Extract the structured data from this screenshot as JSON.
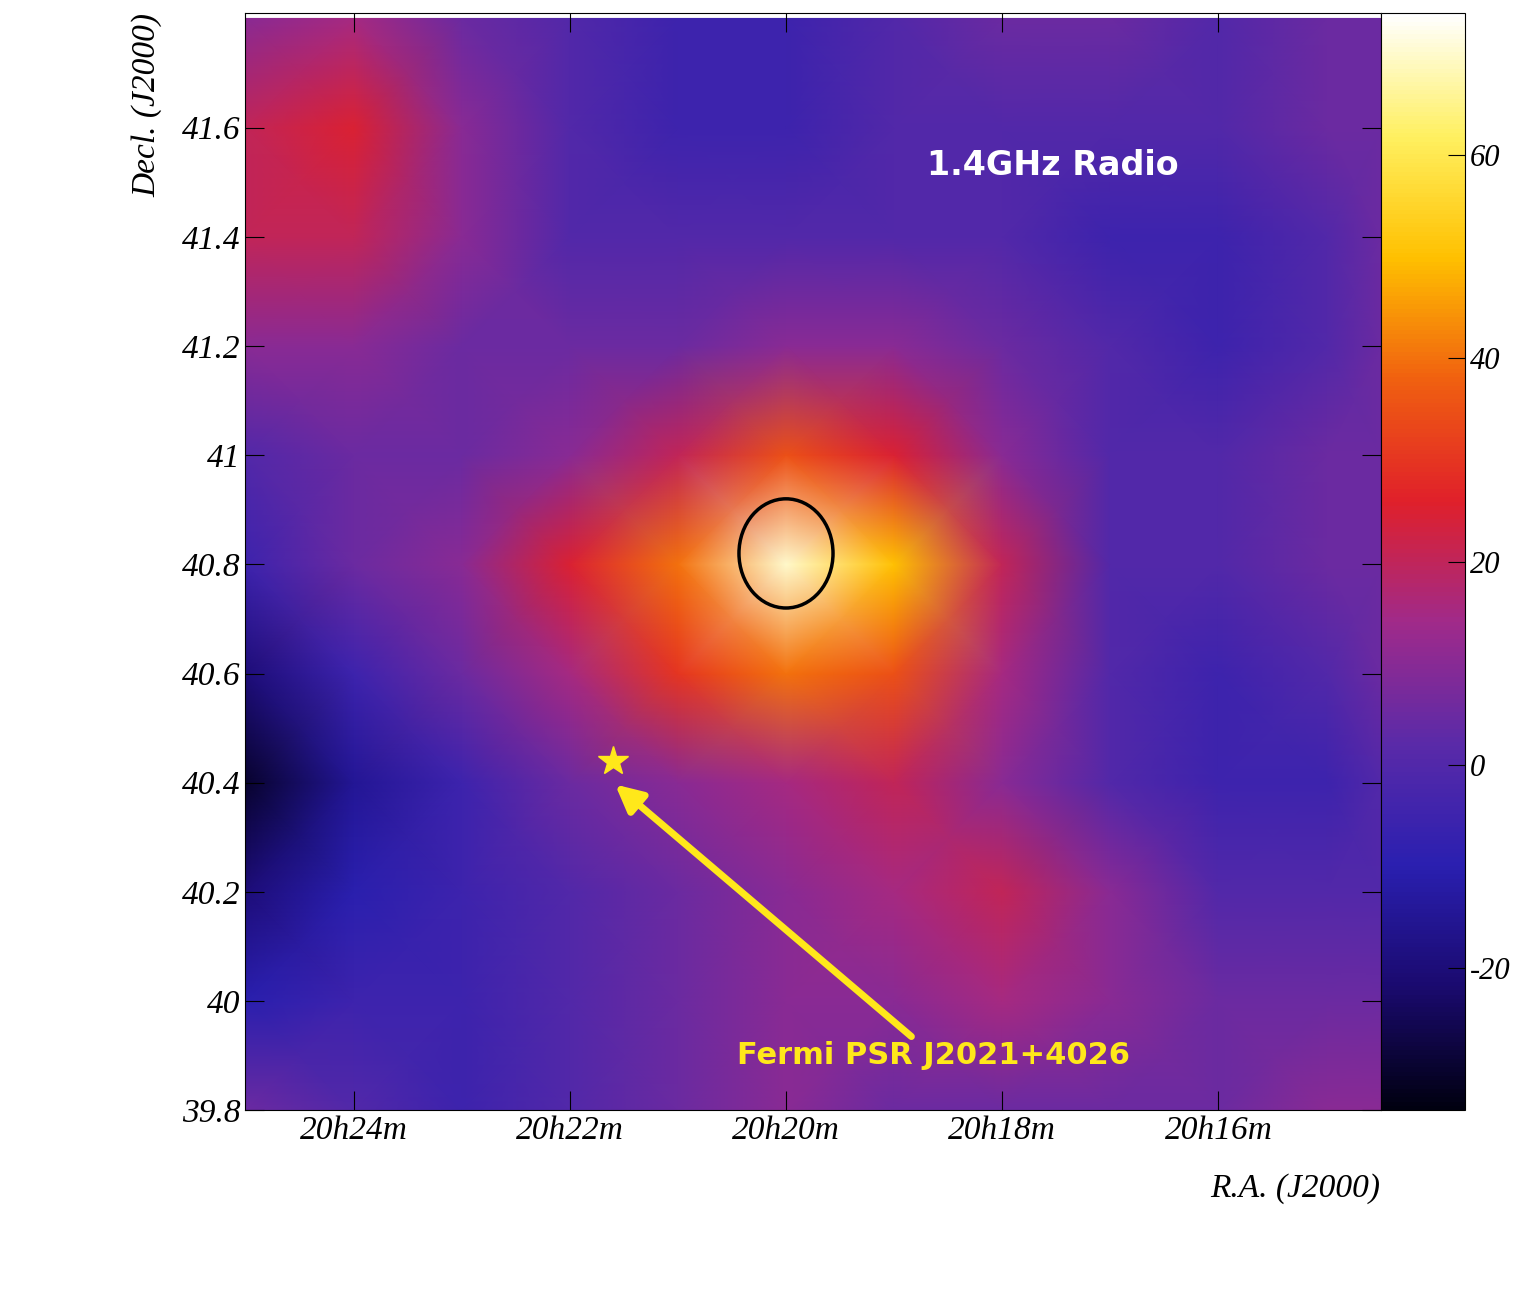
{
  "chart_data": {
    "type": "heatmap",
    "x_label": "R.A. (J2000)",
    "y_label": "Decl. (J2000)",
    "x": [
      25,
      24,
      23,
      22,
      21,
      20,
      19,
      18,
      17,
      16,
      15,
      14.5
    ],
    "y": [
      39.8,
      40.0,
      40.2,
      40.4,
      40.6,
      40.8,
      41.0,
      41.2,
      41.4,
      41.6,
      41.8
    ],
    "cells": [
      [
        5,
        0,
        -5,
        0,
        5,
        10,
        5,
        5,
        5,
        5,
        10,
        10
      ],
      [
        -10,
        -5,
        -5,
        0,
        5,
        10,
        10,
        15,
        10,
        5,
        5,
        5
      ],
      [
        -20,
        -10,
        -5,
        0,
        5,
        10,
        15,
        20,
        10,
        0,
        0,
        0
      ],
      [
        -30,
        -15,
        -5,
        5,
        10,
        15,
        20,
        10,
        0,
        -5,
        -5,
        0
      ],
      [
        -20,
        -5,
        5,
        15,
        30,
        40,
        35,
        15,
        0,
        -5,
        0,
        5
      ],
      [
        -5,
        5,
        10,
        25,
        40,
        70,
        50,
        20,
        0,
        0,
        5,
        5
      ],
      [
        0,
        5,
        5,
        10,
        20,
        35,
        25,
        10,
        0,
        0,
        5,
        5
      ],
      [
        10,
        10,
        5,
        5,
        5,
        10,
        10,
        5,
        0,
        -5,
        0,
        5
      ],
      [
        20,
        20,
        10,
        0,
        0,
        0,
        0,
        0,
        -5,
        -5,
        0,
        5
      ],
      [
        20,
        25,
        10,
        0,
        -5,
        -5,
        0,
        0,
        0,
        0,
        5,
        5
      ],
      [
        10,
        15,
        5,
        0,
        -5,
        -5,
        0,
        5,
        5,
        0,
        5,
        5
      ]
    ],
    "xlim": [
      25,
      14.5
    ],
    "ylim": [
      39.8,
      41.81
    ],
    "xticks": [
      {
        "value": 24,
        "label": "20h24m"
      },
      {
        "value": 22,
        "label": "20h22m"
      },
      {
        "value": 20,
        "label": "20h20m"
      },
      {
        "value": 18,
        "label": "20h18m"
      },
      {
        "value": 16,
        "label": "20h16m"
      }
    ],
    "yticks": [
      39.8,
      40,
      40.2,
      40.4,
      40.6,
      40.8,
      41,
      41.2,
      41.4,
      41.6
    ],
    "colorbar_range": [
      -34,
      74
    ],
    "colorbar_ticks": [
      -20,
      0,
      20,
      40,
      60
    ],
    "source_circle": {
      "x": 20.0,
      "y": 40.82,
      "width": 0.87,
      "height": 0.2,
      "color": "#000000"
    },
    "pulsar": {
      "x": 21.6,
      "y": 40.44,
      "marker": "star",
      "color": "#ffe81a",
      "label": "Fermi PSR J2021+4026",
      "label_x": 20.45,
      "label_y": 39.9
    },
    "panel_label": {
      "text": "1.4GHz Radio",
      "x": 18.7,
      "y": 41.53,
      "color": "#ffffff"
    }
  }
}
